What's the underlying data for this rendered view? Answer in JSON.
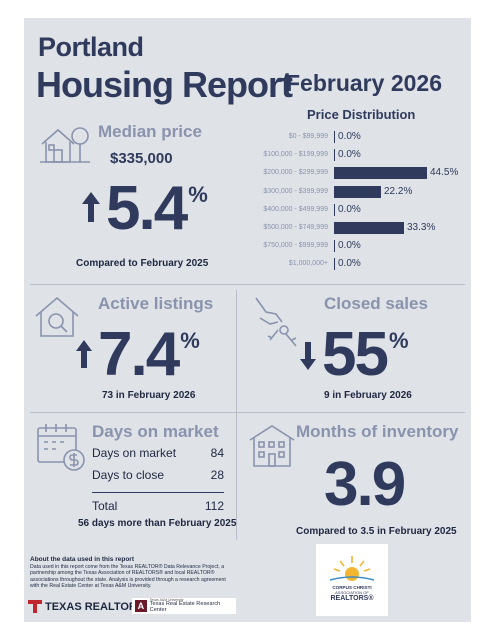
{
  "header": {
    "city": "Portland",
    "report": "Housing Report",
    "month": "February 2026"
  },
  "median": {
    "title": "Median price",
    "price": "$335,000",
    "change": "5.4",
    "pct": "%",
    "caption": "Compared to February 2025",
    "direction": "up"
  },
  "price_distribution": {
    "title": "Price Distribution",
    "rows": [
      {
        "label": "$0 - $99,999",
        "value": 0.0,
        "text": "0.0%"
      },
      {
        "label": "$100,000 - $199,999",
        "value": 0.0,
        "text": "0.0%"
      },
      {
        "label": "$200,000 - $299,999",
        "value": 44.5,
        "text": "44.5%"
      },
      {
        "label": "$300,000 - $399,999",
        "value": 22.2,
        "text": "22.2%"
      },
      {
        "label": "$400,000 - $499,999",
        "value": 0.0,
        "text": "0.0%"
      },
      {
        "label": "$500,000 - $749,999",
        "value": 33.3,
        "text": "33.3%"
      },
      {
        "label": "$750,000 - $999,999",
        "value": 0.0,
        "text": "0.0%"
      },
      {
        "label": "$1,000,000+",
        "value": 0.0,
        "text": "0.0%"
      }
    ]
  },
  "active": {
    "title": "Active listings",
    "change": "7.4",
    "pct": "%",
    "caption": "73 in February 2026",
    "direction": "up"
  },
  "closed": {
    "title": "Closed sales",
    "change": "55",
    "pct": "%",
    "caption": "9 in February 2026",
    "direction": "down"
  },
  "dom": {
    "title": "Days on market",
    "rows": [
      {
        "label": "Days on market",
        "value": "84"
      },
      {
        "label": "Days to close",
        "value": "28"
      }
    ],
    "total_label": "Total",
    "total_value": "112",
    "caption": "56 days more than February 2025"
  },
  "inventory": {
    "title": "Months of inventory",
    "value": "3.9",
    "caption": "Compared to 3.5 in February 2025"
  },
  "about": {
    "title": "About the data used in this report",
    "text": "Data used in this report come from the Texas REALTOR® Data Relevance Project, a partnership among the Texas Association of REALTORS® and local REALTOR® associations throughout the state. Analysis is provided through a research agreement with the Real Estate Center at Texas A&M University."
  },
  "logos": {
    "texas_realtors": "TEXAS REALTORS",
    "trec_small": "Texas A&M University",
    "trec": "Texas Real Estate Research Center",
    "assoc_line1": "CORPUS CHRISTI",
    "assoc_line2": "ASSOCIATION OF",
    "assoc_line3": "REALTORS®"
  },
  "colors": {
    "navy": "#2f3a5c",
    "muted": "#8a93ad",
    "panel": "#dfe2e7"
  }
}
